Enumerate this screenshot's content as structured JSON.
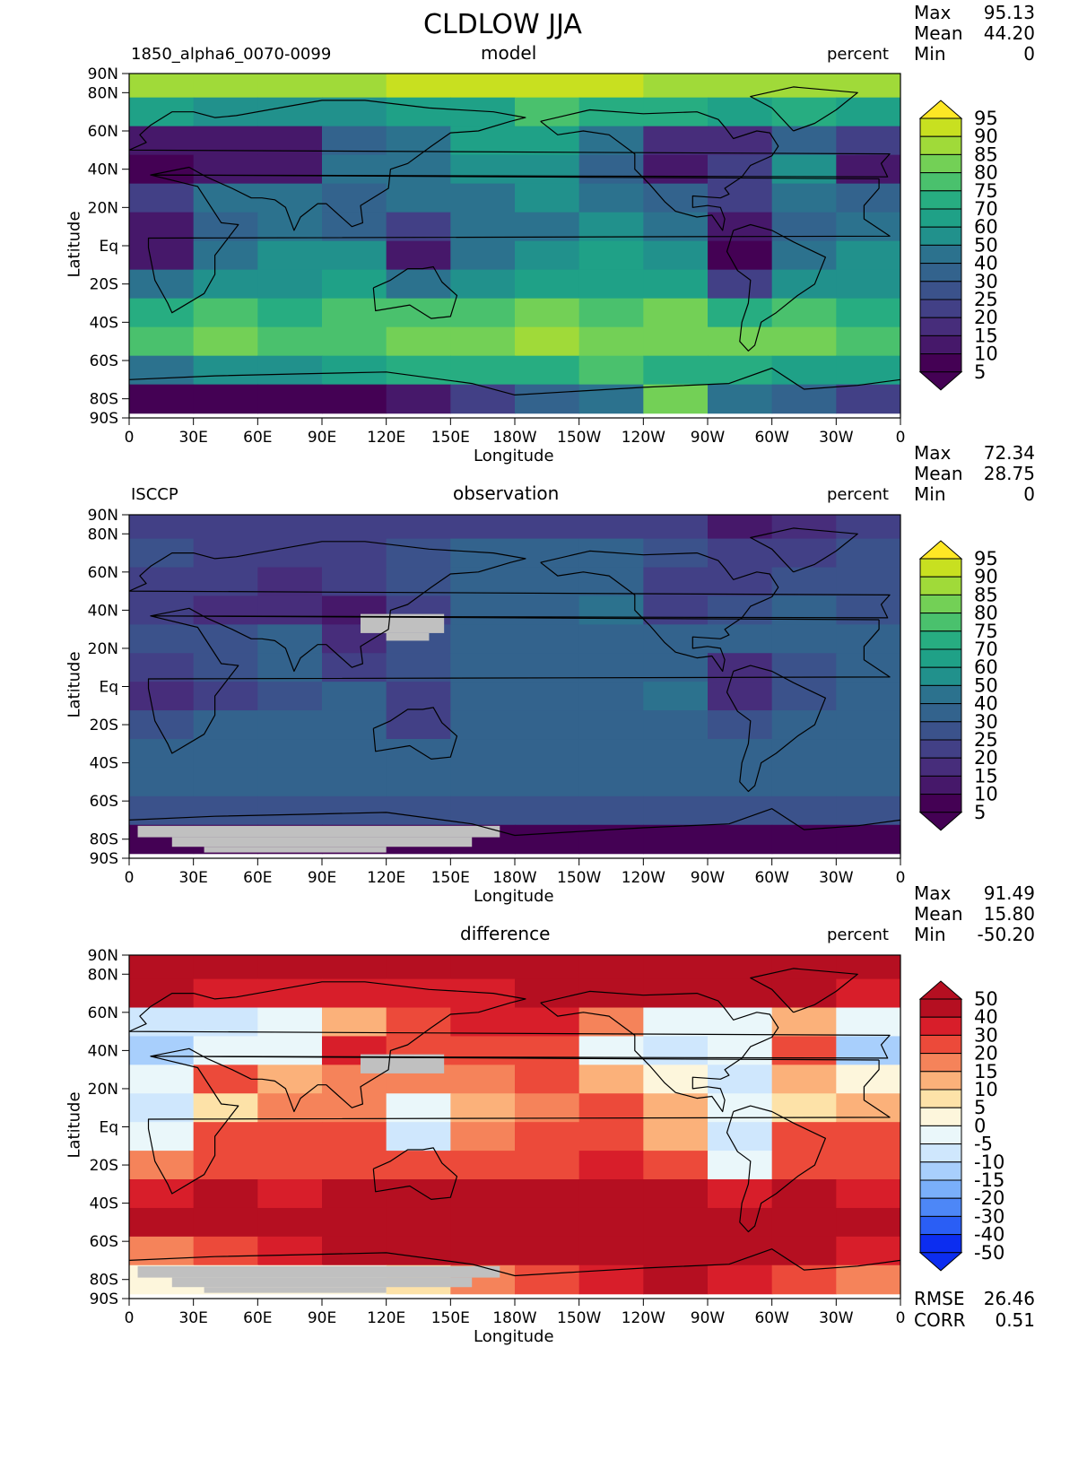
{
  "figure": {
    "title": "CLDLOW JJA",
    "lon_ticks": [
      "0",
      "30E",
      "60E",
      "90E",
      "120E",
      "150E",
      "180W",
      "150W",
      "120W",
      "90W",
      "60W",
      "30W",
      "0"
    ],
    "lat_ticks": [
      "90N",
      "80N",
      "60N",
      "40N",
      "20N",
      "Eq",
      "20S",
      "40S",
      "60S",
      "80S",
      "90S"
    ],
    "xlabel": "Longitude",
    "ylabel": "Latitude"
  },
  "panels": [
    {
      "left_label": "1850_alpha6_0070-0099",
      "center_label": "model",
      "right_label": "percent",
      "stats": {
        "max_label": "Max",
        "max": "95.13",
        "mean_label": "Mean",
        "mean": "44.20",
        "min_label": "Min",
        "min": "0"
      },
      "colorbar": [
        "95",
        "90",
        "85",
        "80",
        "75",
        "70",
        "60",
        "50",
        "40",
        "30",
        "25",
        "20",
        "15",
        "10",
        "5"
      ]
    },
    {
      "left_label": "ISCCP",
      "center_label": "observation",
      "right_label": "percent",
      "stats": {
        "max_label": "Max",
        "max": "72.34",
        "mean_label": "Mean",
        "mean": "28.75",
        "min_label": "Min",
        "min": "0"
      },
      "colorbar": [
        "95",
        "90",
        "85",
        "80",
        "75",
        "70",
        "60",
        "50",
        "40",
        "30",
        "25",
        "20",
        "15",
        "10",
        "5"
      ]
    },
    {
      "left_label": "",
      "center_label": "difference",
      "right_label": "percent",
      "stats": {
        "max_label": "Max",
        "max": "91.49",
        "mean_label": "Mean",
        "mean": "15.80",
        "min_label": "Min",
        "min": "-50.20"
      },
      "colorbar": [
        "50",
        "40",
        "30",
        "20",
        "15",
        "10",
        "5",
        "0",
        "-5",
        "-10",
        "-15",
        "-20",
        "-30",
        "-40",
        "-50"
      ],
      "rmse_label": "RMSE",
      "rmse": "26.46",
      "corr_label": "CORR",
      "corr": "0.51"
    }
  ],
  "colors": {
    "viridis": [
      "#440154",
      "#46186a",
      "#472d7b",
      "#424086",
      "#3b528b",
      "#33638d",
      "#2c728e",
      "#21918c",
      "#1fa187",
      "#27ad81",
      "#4ac16d",
      "#73d056",
      "#a0da39",
      "#c8e020",
      "#fde725"
    ],
    "diverging": [
      "#0c2df0",
      "#2a5ef5",
      "#4d87f7",
      "#7aaffa",
      "#a8cffc",
      "#cfe7fd",
      "#eaf7fa",
      "#fdf6dc",
      "#fde2a8",
      "#fbb17a",
      "#f5835a",
      "#ec4a3a",
      "#d81e2a",
      "#b50f21"
    ],
    "missing": "#c0c0c0"
  },
  "chart_data": [
    {
      "type": "heatmap",
      "title": "model",
      "subtitle": "1850_alpha6_0070-0099",
      "units": "percent",
      "xlabel": "Longitude",
      "ylabel": "Latitude",
      "xlim": [
        0,
        360
      ],
      "ylim": [
        -90,
        90
      ],
      "levels": [
        5,
        10,
        15,
        20,
        25,
        30,
        40,
        50,
        60,
        70,
        75,
        80,
        85,
        90,
        95
      ],
      "grid_lats": [
        85,
        70,
        55,
        40,
        25,
        10,
        -5,
        -20,
        -35,
        -50,
        -65,
        -80
      ],
      "grid_lons": [
        0,
        30,
        60,
        90,
        120,
        150,
        180,
        210,
        240,
        270,
        300,
        330
      ],
      "values": [
        [
          85,
          88,
          88,
          88,
          90,
          90,
          92,
          90,
          88,
          86,
          85,
          85
        ],
        [
          65,
          55,
          50,
          55,
          60,
          62,
          78,
          72,
          70,
          65,
          70,
          60
        ],
        [
          10,
          10,
          10,
          30,
          45,
          60,
          65,
          45,
          15,
          15,
          35,
          20
        ],
        [
          5,
          10,
          10,
          40,
          45,
          55,
          55,
          35,
          10,
          20,
          50,
          10
        ],
        [
          20,
          45,
          40,
          30,
          40,
          45,
          50,
          40,
          30,
          20,
          40,
          30
        ],
        [
          10,
          30,
          45,
          35,
          20,
          40,
          45,
          50,
          40,
          10,
          30,
          40
        ],
        [
          10,
          40,
          50,
          50,
          10,
          45,
          55,
          60,
          50,
          5,
          45,
          50
        ],
        [
          40,
          55,
          55,
          60,
          45,
          55,
          60,
          65,
          60,
          20,
          55,
          55
        ],
        [
          70,
          75,
          70,
          75,
          75,
          75,
          80,
          75,
          80,
          70,
          75,
          70
        ],
        [
          75,
          80,
          75,
          75,
          80,
          80,
          85,
          80,
          80,
          80,
          80,
          75
        ],
        [
          40,
          50,
          55,
          65,
          70,
          70,
          70,
          75,
          70,
          70,
          65,
          60
        ],
        [
          5,
          5,
          5,
          5,
          10,
          20,
          30,
          40,
          80,
          40,
          30,
          20
        ]
      ]
    },
    {
      "type": "heatmap",
      "title": "observation",
      "subtitle": "ISCCP",
      "units": "percent",
      "xlabel": "Longitude",
      "ylabel": "Latitude",
      "xlim": [
        0,
        360
      ],
      "ylim": [
        -90,
        90
      ],
      "levels": [
        5,
        10,
        15,
        20,
        25,
        30,
        40,
        50,
        60,
        70,
        75,
        80,
        85,
        90,
        95
      ],
      "grid_lats": [
        85,
        70,
        55,
        40,
        25,
        10,
        -5,
        -20,
        -35,
        -50,
        -65,
        -80
      ],
      "grid_lons": [
        0,
        30,
        60,
        90,
        120,
        150,
        180,
        210,
        240,
        270,
        300,
        330
      ],
      "values": [
        [
          20,
          20,
          20,
          20,
          20,
          20,
          20,
          20,
          20,
          10,
          15,
          20
        ],
        [
          25,
          20,
          20,
          20,
          25,
          30,
          30,
          30,
          25,
          20,
          20,
          25
        ],
        [
          20,
          20,
          15,
          20,
          25,
          30,
          35,
          30,
          20,
          20,
          25,
          25
        ],
        [
          20,
          15,
          15,
          10,
          20,
          30,
          35,
          40,
          20,
          25,
          30,
          25
        ],
        [
          25,
          25,
          30,
          15,
          25,
          30,
          30,
          30,
          30,
          30,
          30,
          30
        ],
        [
          20,
          25,
          30,
          20,
          25,
          30,
          30,
          30,
          30,
          15,
          25,
          30
        ],
        [
          15,
          20,
          25,
          30,
          20,
          30,
          30,
          35,
          40,
          15,
          25,
          30
        ],
        [
          25,
          30,
          35,
          35,
          20,
          30,
          35,
          35,
          35,
          25,
          30,
          30
        ],
        [
          35,
          35,
          35,
          35,
          35,
          35,
          35,
          35,
          35,
          35,
          35,
          35
        ],
        [
          30,
          30,
          30,
          30,
          30,
          30,
          30,
          30,
          30,
          30,
          30,
          30
        ],
        [
          25,
          25,
          25,
          25,
          25,
          25,
          25,
          25,
          25,
          25,
          25,
          25
        ],
        [
          5,
          5,
          5,
          5,
          5,
          5,
          5,
          5,
          5,
          5,
          5,
          5
        ]
      ]
    },
    {
      "type": "heatmap",
      "title": "difference",
      "units": "percent",
      "xlabel": "Longitude",
      "ylabel": "Latitude",
      "xlim": [
        0,
        360
      ],
      "ylim": [
        -90,
        90
      ],
      "levels": [
        -50,
        -40,
        -30,
        -20,
        -15,
        -10,
        -5,
        0,
        5,
        10,
        15,
        20,
        30,
        40,
        50
      ],
      "grid_lats": [
        85,
        70,
        55,
        40,
        25,
        10,
        -5,
        -20,
        -35,
        -50,
        -65,
        -80
      ],
      "grid_lons": [
        0,
        30,
        60,
        90,
        120,
        150,
        180,
        210,
        240,
        270,
        300,
        330
      ],
      "values": [
        [
          65,
          68,
          68,
          68,
          70,
          70,
          72,
          70,
          68,
          76,
          70,
          65
        ],
        [
          40,
          35,
          30,
          35,
          35,
          32,
          48,
          42,
          45,
          45,
          50,
          35
        ],
        [
          -10,
          -10,
          -5,
          10,
          20,
          30,
          30,
          15,
          -5,
          -5,
          10,
          -5
        ],
        [
          -15,
          -5,
          -5,
          30,
          25,
          25,
          20,
          -5,
          -10,
          -5,
          20,
          -15
        ],
        [
          -5,
          20,
          10,
          15,
          15,
          15,
          20,
          10,
          0,
          -10,
          10,
          0
        ],
        [
          -10,
          5,
          15,
          15,
          -5,
          10,
          15,
          20,
          10,
          -5,
          5,
          10
        ],
        [
          -5,
          20,
          25,
          20,
          -10,
          15,
          25,
          25,
          10,
          -10,
          20,
          20
        ],
        [
          15,
          25,
          20,
          25,
          25,
          25,
          25,
          30,
          25,
          -5,
          25,
          25
        ],
        [
          35,
          40,
          35,
          40,
          40,
          40,
          45,
          40,
          45,
          35,
          40,
          35
        ],
        [
          45,
          50,
          45,
          45,
          50,
          50,
          55,
          50,
          50,
          50,
          50,
          45
        ],
        [
          15,
          25,
          30,
          40,
          45,
          45,
          45,
          50,
          45,
          45,
          40,
          35
        ],
        [
          0,
          0,
          0,
          0,
          5,
          15,
          25,
          35,
          75,
          35,
          25,
          15
        ]
      ]
    }
  ]
}
